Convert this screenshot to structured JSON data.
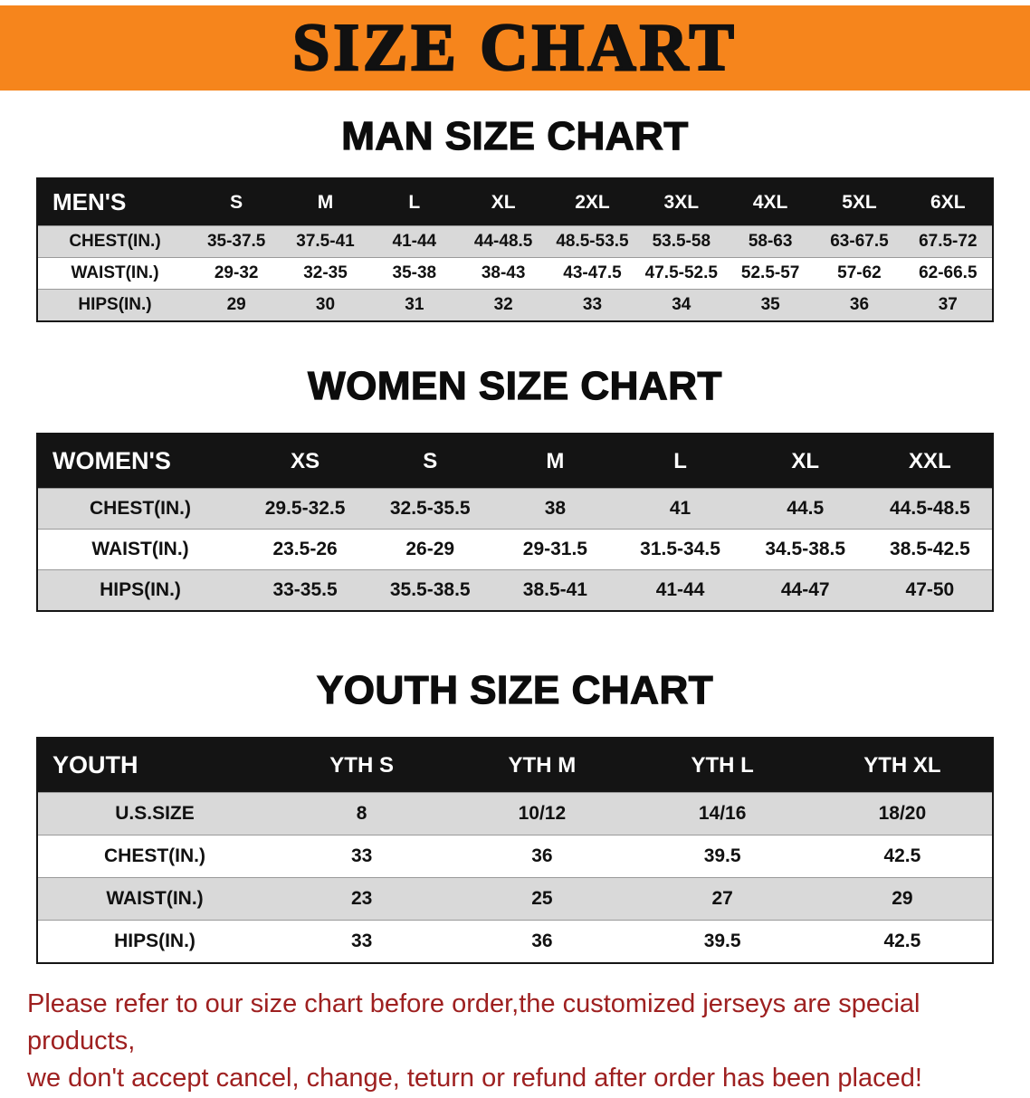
{
  "banner": {
    "title": "SIZE CHART",
    "bg_color": "#f6851c"
  },
  "colors": {
    "table_header_bg": "#141414",
    "row_stripe_bg": "#d9d9d9",
    "notice_text": "#9e2020"
  },
  "sections": [
    {
      "heading": "MAN SIZE CHART",
      "table": {
        "header": [
          "MEN'S",
          "S",
          "M",
          "L",
          "XL",
          "2XL",
          "3XL",
          "4XL",
          "5XL",
          "6XL"
        ],
        "rows": [
          [
            "CHEST(IN.)",
            "35-37.5",
            "37.5-41",
            "41-44",
            "44-48.5",
            "48.5-53.5",
            "53.5-58",
            "58-63",
            "63-67.5",
            "67.5-72"
          ],
          [
            "WAIST(IN.)",
            "29-32",
            "32-35",
            "35-38",
            "38-43",
            "43-47.5",
            "47.5-52.5",
            "52.5-57",
            "57-62",
            "62-66.5"
          ],
          [
            "HIPS(IN.)",
            "29",
            "30",
            "31",
            "32",
            "33",
            "34",
            "35",
            "36",
            "37"
          ]
        ]
      }
    },
    {
      "heading": "WOMEN SIZE CHART",
      "table": {
        "header": [
          "WOMEN'S",
          "XS",
          "S",
          "M",
          "L",
          "XL",
          "XXL"
        ],
        "rows": [
          [
            "CHEST(IN.)",
            "29.5-32.5",
            "32.5-35.5",
            "38",
            "41",
            "44.5",
            "44.5-48.5"
          ],
          [
            "WAIST(IN.)",
            "23.5-26",
            "26-29",
            "29-31.5",
            "31.5-34.5",
            "34.5-38.5",
            "38.5-42.5"
          ],
          [
            "HIPS(IN.)",
            "33-35.5",
            "35.5-38.5",
            "38.5-41",
            "41-44",
            "44-47",
            "47-50"
          ]
        ]
      }
    },
    {
      "heading": "YOUTH SIZE CHART",
      "table": {
        "header": [
          "YOUTH",
          "YTH S",
          "YTH M",
          "YTH L",
          "YTH XL"
        ],
        "rows": [
          [
            "U.S.SIZE",
            "8",
            "10/12",
            "14/16",
            "18/20"
          ],
          [
            "CHEST(IN.)",
            "33",
            "36",
            "39.5",
            "42.5"
          ],
          [
            "WAIST(IN.)",
            "23",
            "25",
            "27",
            "29"
          ],
          [
            "HIPS(IN.)",
            "33",
            "36",
            "39.5",
            "42.5"
          ]
        ]
      }
    }
  ],
  "footer": {
    "line1": "Please refer to our size chart before order,the customized jerseys are special products,",
    "line2": "we don't accept cancel, change, teturn or refund after order has been placed!"
  }
}
